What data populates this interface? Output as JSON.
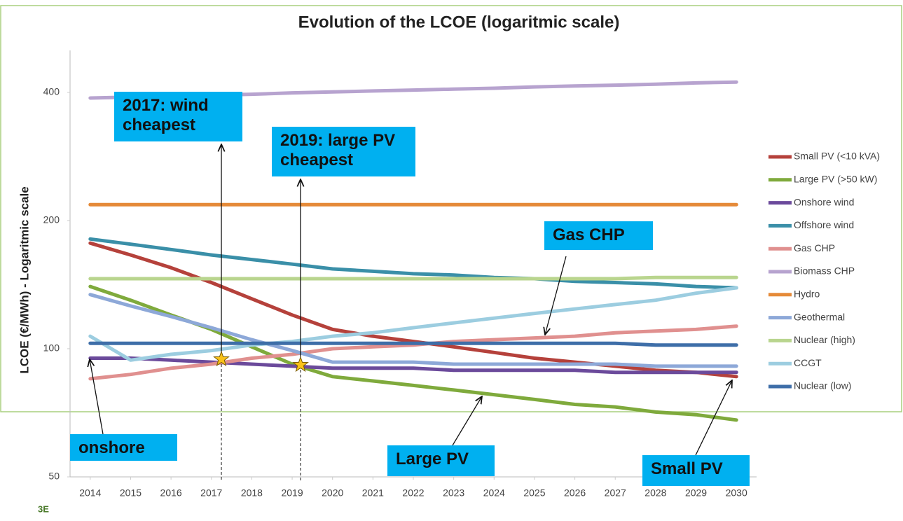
{
  "chart_data": {
    "type": "line",
    "title": "Evolution of the LCOE (logaritmic scale)",
    "ylabel": "LCOE (€/MWh) - Logaritmic scale",
    "x": [
      2014,
      2015,
      2016,
      2017,
      2018,
      2019,
      2020,
      2021,
      2022,
      2023,
      2024,
      2025,
      2026,
      2027,
      2028,
      2029,
      2030
    ],
    "xlim": [
      2013.5,
      2030.5
    ],
    "xticks": [
      2014,
      2015,
      2016,
      2017,
      2018,
      2019,
      2020,
      2021,
      2022,
      2023,
      2024,
      2025,
      2026,
      2027,
      2028,
      2029,
      2030
    ],
    "ylim": [
      50,
      500
    ],
    "yticks": [
      50,
      100,
      200,
      400
    ],
    "log_scale": true,
    "grid": false,
    "legend": "right",
    "series": [
      {
        "name": "Small PV (<10 kVA)",
        "color": "#b5413b",
        "values": [
          177,
          166,
          155,
          143,
          131,
          120,
          111,
          107,
          104,
          101,
          98,
          95,
          93,
          91,
          89,
          88,
          86
        ]
      },
      {
        "name": "Large PV (>50 kW)",
        "color": "#7faa3c",
        "values": [
          140,
          130,
          120,
          111,
          101,
          92,
          86,
          84,
          82,
          80,
          78,
          76,
          74,
          73,
          71,
          70,
          68
        ]
      },
      {
        "name": "Onshore wind",
        "color": "#6b4a9b",
        "values": [
          95,
          95,
          94,
          93,
          92,
          91,
          90,
          90,
          90,
          89,
          89,
          89,
          89,
          88,
          88,
          88,
          88
        ]
      },
      {
        "name": "Offshore wind",
        "color": "#3a8fa8",
        "values": [
          181,
          176,
          171,
          166,
          162,
          158,
          154,
          152,
          150,
          149,
          147,
          146,
          144,
          143,
          142,
          140,
          139
        ]
      },
      {
        "name": "Gas CHP",
        "color": "#e0908f",
        "values": [
          85,
          87,
          90,
          92,
          95,
          97,
          100,
          101,
          102,
          104,
          105,
          106,
          107,
          109,
          110,
          111,
          113
        ]
      },
      {
        "name": "Biomass CHP",
        "color": "#b7a3cf",
        "values": [
          388,
          390,
          392,
          394,
          396,
          399,
          401,
          403,
          405,
          407,
          409,
          412,
          414,
          416,
          418,
          421,
          423
        ]
      },
      {
        "name": "Hydro",
        "color": "#e58a38",
        "values": [
          218,
          218,
          218,
          218,
          218,
          218,
          218,
          218,
          218,
          218,
          218,
          218,
          218,
          218,
          218,
          218,
          218
        ]
      },
      {
        "name": "Geothermal",
        "color": "#8da8d8",
        "values": [
          134,
          126,
          119,
          112,
          105,
          99,
          93,
          93,
          93,
          92,
          92,
          92,
          92,
          92,
          91,
          91,
          91
        ]
      },
      {
        "name": "Nuclear (high)",
        "color": "#b9d58e",
        "values": [
          146,
          146,
          146,
          146,
          146,
          146,
          146,
          146,
          146,
          146,
          146,
          146,
          146,
          146,
          147,
          147,
          147
        ]
      },
      {
        "name": "CCGT",
        "color": "#9ccde0",
        "values": [
          107,
          94,
          97,
          99,
          102,
          104,
          107,
          109,
          112,
          115,
          118,
          121,
          124,
          127,
          130,
          135,
          139
        ]
      },
      {
        "name": "Nuclear (low)",
        "color": "#3e6ea8",
        "values": [
          103,
          103,
          103,
          103,
          103,
          103,
          103,
          103,
          103,
          103,
          103,
          103,
          103,
          103,
          102,
          102,
          102
        ]
      }
    ],
    "annotations": [
      "2017: wind cheapest",
      "2019: large PV cheapest",
      "Gas CHP",
      "onshore",
      "Large PV",
      "Small PV"
    ],
    "logo": "3E"
  }
}
